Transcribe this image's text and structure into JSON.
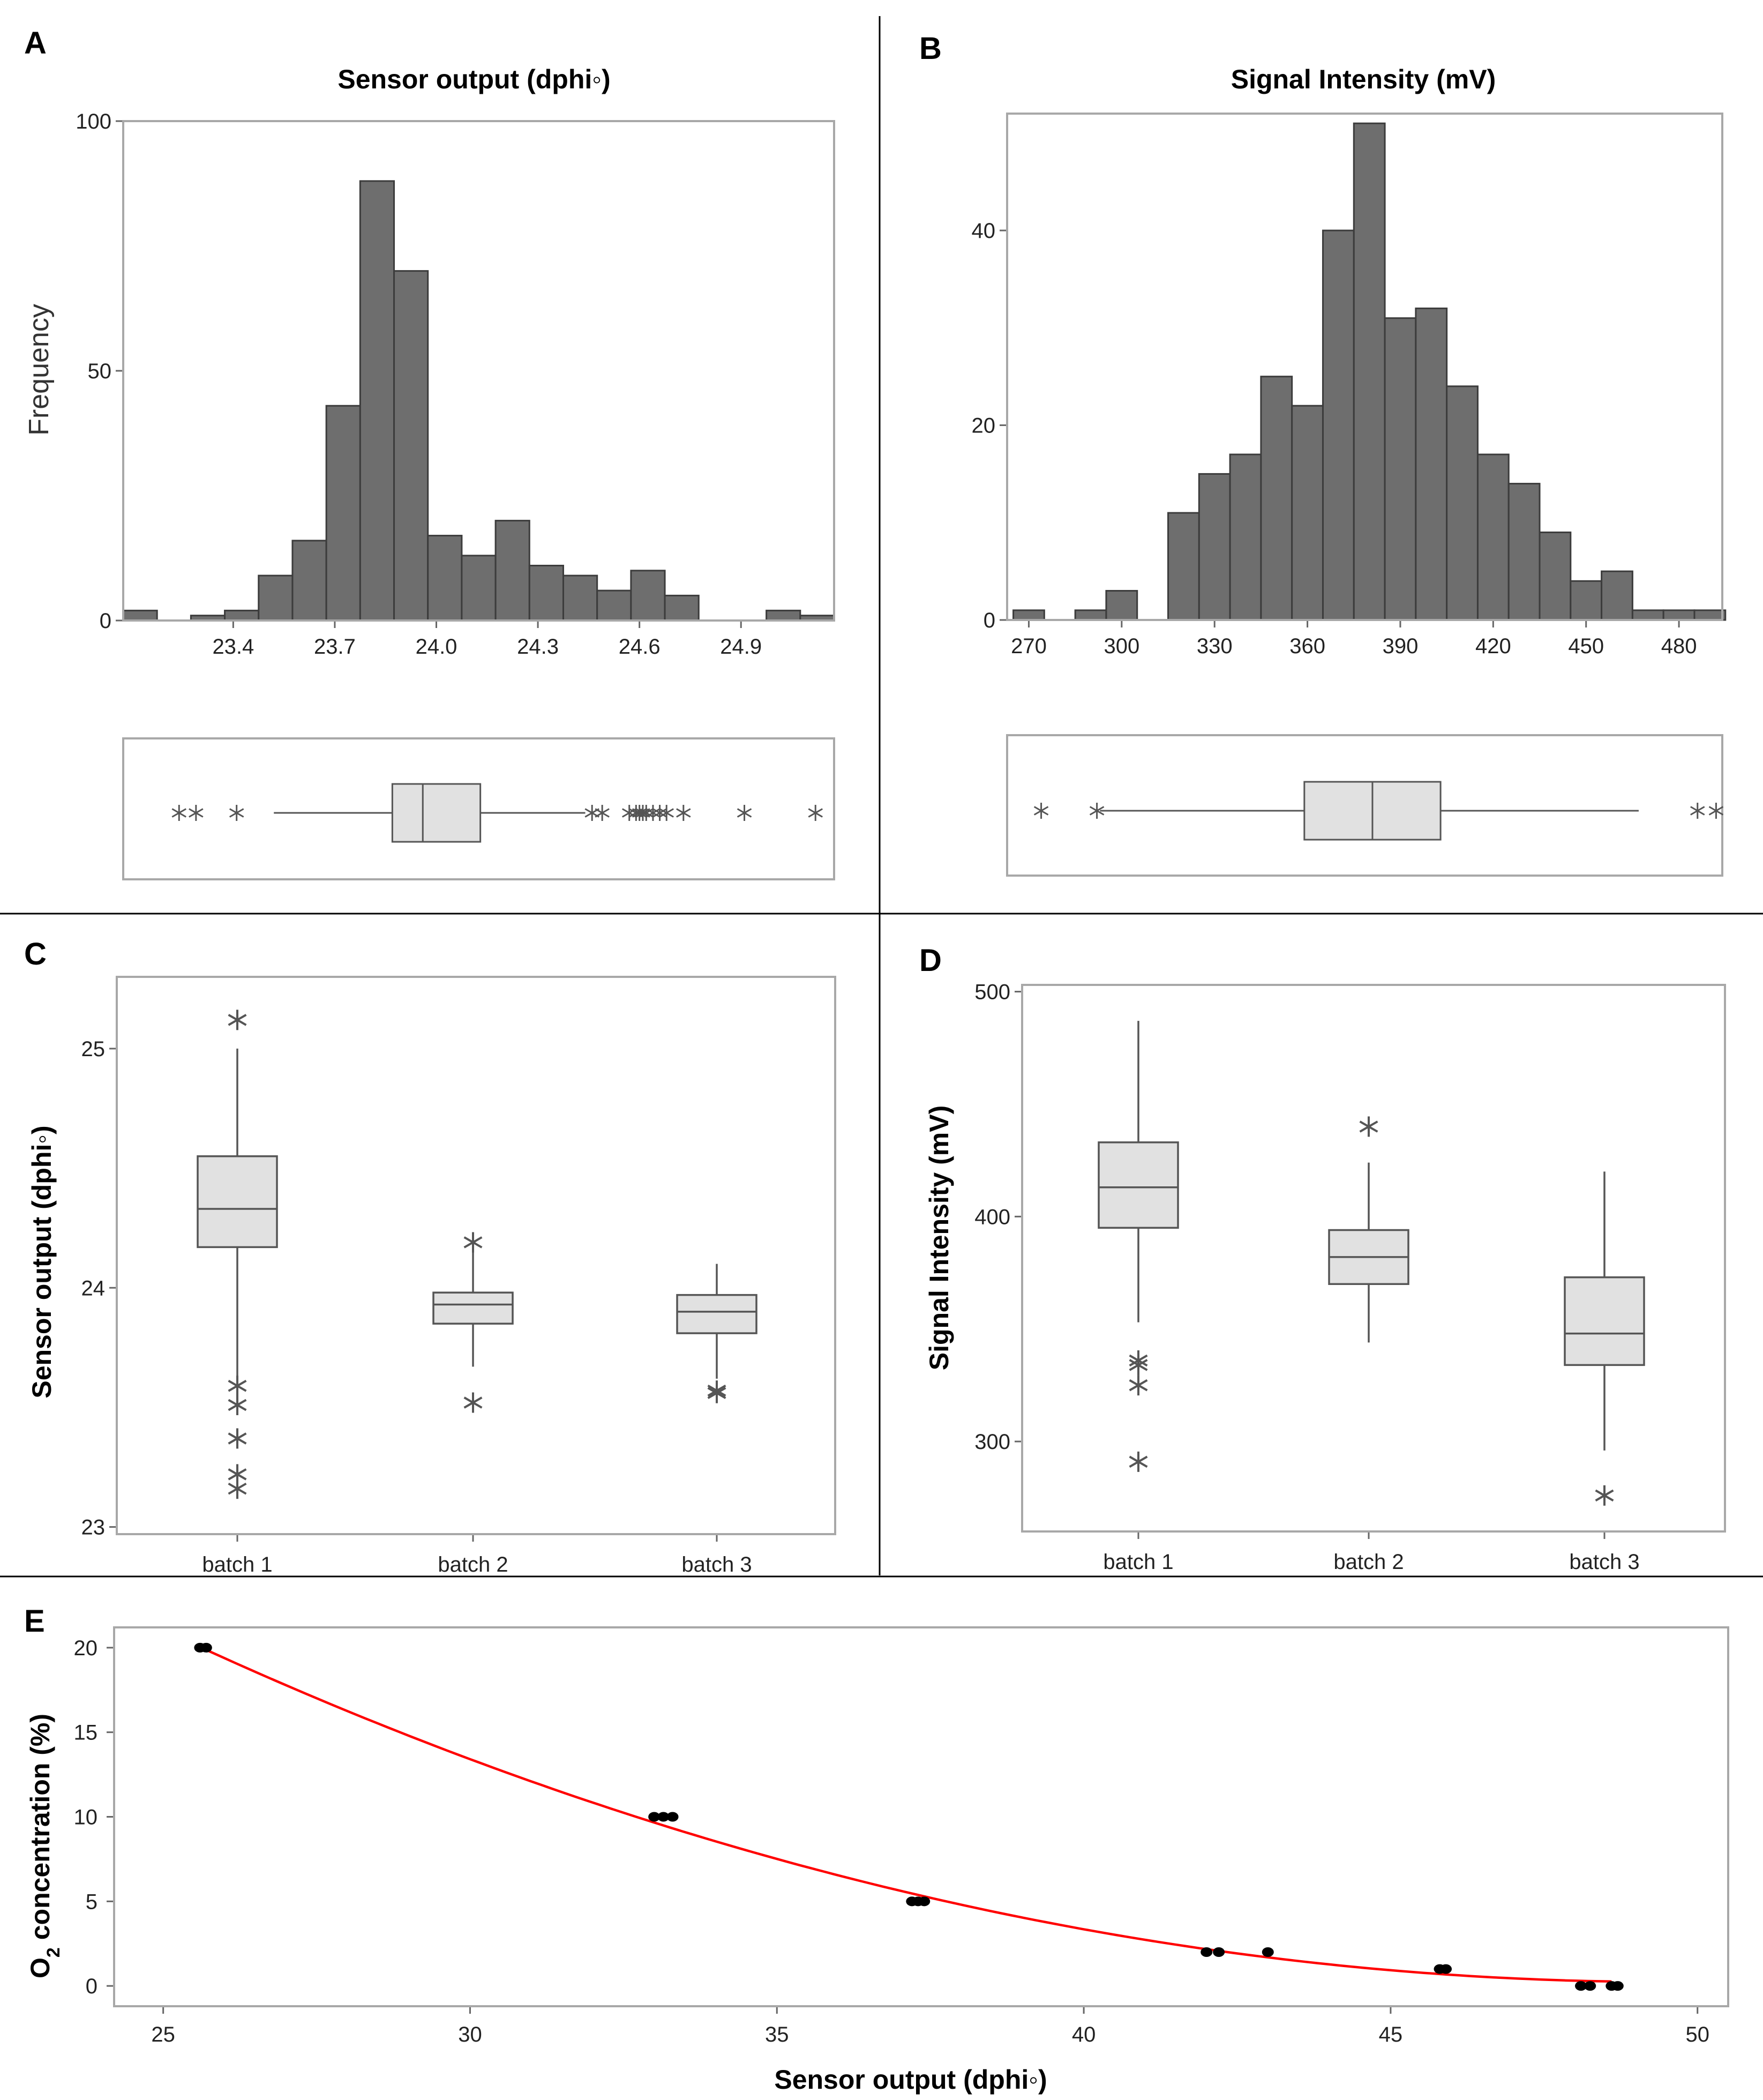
{
  "panels": {
    "A": {
      "letter": "A",
      "title": "Sensor output (dphi◦)",
      "ylabel": "Frequency",
      "x_ticks": [
        "23.4",
        "23.7",
        "24.0",
        "24.3",
        "24.6",
        "24.9"
      ],
      "y_ticks": [
        "0",
        "50",
        "100"
      ]
    },
    "B": {
      "letter": "B",
      "title": "Signal Intensity (mV)",
      "x_ticks": [
        "270",
        "300",
        "330",
        "360",
        "390",
        "420",
        "450",
        "480"
      ],
      "y_ticks": [
        "0",
        "20",
        "40"
      ]
    },
    "C": {
      "letter": "C",
      "ylabel": "Sensor output (dphi◦)",
      "categories": [
        "batch 1",
        "batch 2",
        "batch 3"
      ],
      "y_ticks": [
        "23",
        "24",
        "25"
      ]
    },
    "D": {
      "letter": "D",
      "ylabel": "Signal Intensity (mV)",
      "categories": [
        "batch 1",
        "batch 2",
        "batch 3"
      ],
      "y_ticks": [
        "300",
        "400",
        "500"
      ]
    },
    "E": {
      "letter": "E",
      "ylabel": "O",
      "ylabel_sub": "2",
      "ylabel_rest": " concentration (%)",
      "xlabel": "Sensor output (dphi◦)",
      "x_ticks": [
        "25",
        "30",
        "35",
        "40",
        "45",
        "50"
      ],
      "y_ticks": [
        "0",
        "5",
        "10",
        "15",
        "20"
      ]
    }
  },
  "colors": {
    "bar_fill": "#6e6e6e",
    "box_fill": "#e1e1e1",
    "frame": "#a8a8a8",
    "line": "#555555",
    "fit_line": "#ff0000",
    "point": "#000000",
    "divider": "#000000"
  },
  "chart_data": [
    {
      "panel": "A",
      "type": "bar",
      "subtype": "histogram",
      "title": "Sensor output (dphi◦)",
      "xlabel": "",
      "ylabel": "Frequency",
      "xlim": [
        23.075,
        25.175
      ],
      "ylim": [
        0,
        100
      ],
      "bin_width": 0.1,
      "bin_centers": [
        23.125,
        23.225,
        23.325,
        23.425,
        23.525,
        23.625,
        23.725,
        23.825,
        23.925,
        24.025,
        24.125,
        24.225,
        24.325,
        24.425,
        24.525,
        24.625,
        24.725,
        24.825,
        24.925,
        25.025,
        25.125
      ],
      "values": [
        2,
        0,
        1,
        2,
        9,
        16,
        43,
        88,
        70,
        17,
        13,
        20,
        11,
        9,
        6,
        10,
        5,
        0,
        0,
        2,
        1
      ],
      "boxplot": {
        "xlim": [
          23.075,
          25.175
        ],
        "q1": 23.87,
        "median": 23.96,
        "q3": 24.13,
        "whisker_low": 23.52,
        "whisker_high": 24.44,
        "outliers": [
          23.24,
          23.29,
          23.41,
          24.46,
          24.49,
          24.57,
          24.59,
          24.6,
          24.61,
          24.62,
          24.64,
          24.66,
          24.68,
          24.73,
          24.91,
          25.12
        ]
      }
    },
    {
      "panel": "B",
      "type": "bar",
      "subtype": "histogram",
      "title": "Signal Intensity (mV)",
      "xlabel": "",
      "ylabel": "",
      "xlim": [
        263,
        494
      ],
      "ylim": [
        0,
        52
      ],
      "bin_width": 10,
      "bin_centers": [
        270,
        280,
        290,
        300,
        310,
        320,
        330,
        340,
        350,
        360,
        370,
        380,
        390,
        400,
        410,
        420,
        430,
        440,
        450,
        460,
        470,
        480,
        490
      ],
      "values": [
        1,
        0,
        1,
        3,
        0,
        11,
        15,
        17,
        25,
        22,
        40,
        51,
        31,
        32,
        24,
        17,
        14,
        9,
        4,
        5,
        1,
        1,
        1
      ],
      "boxplot": {
        "xlim": [
          263,
          494
        ],
        "q1": 359,
        "median": 381,
        "q3": 403,
        "whisker_low": 293,
        "whisker_high": 467,
        "outliers": [
          274,
          292,
          486,
          492
        ]
      }
    },
    {
      "panel": "C",
      "type": "boxplot",
      "title": "",
      "xlabel": "",
      "ylabel": "Sensor output (dphi◦)",
      "categories": [
        "batch 1",
        "batch 2",
        "batch 3"
      ],
      "ylim": [
        22.97,
        25.3
      ],
      "boxes": [
        {
          "name": "batch 1",
          "whisker_low": 23.62,
          "q1": 24.17,
          "median": 24.33,
          "q3": 24.55,
          "whisker_high": 25.0,
          "outliers": [
            25.12,
            23.59,
            23.51,
            23.37,
            23.22,
            23.16
          ]
        },
        {
          "name": "batch 2",
          "whisker_low": 23.67,
          "q1": 23.85,
          "median": 23.93,
          "q3": 23.98,
          "whisker_high": 24.17,
          "outliers": [
            24.19,
            23.52
          ]
        },
        {
          "name": "batch 3",
          "whisker_low": 23.62,
          "q1": 23.81,
          "median": 23.9,
          "q3": 23.97,
          "whisker_high": 24.1,
          "outliers": [
            23.57,
            23.56
          ]
        }
      ]
    },
    {
      "panel": "D",
      "type": "boxplot",
      "title": "",
      "xlabel": "",
      "ylabel": "Signal Intensity (mV)",
      "categories": [
        "batch 1",
        "batch 2",
        "batch 3"
      ],
      "ylim": [
        260,
        503
      ],
      "boxes": [
        {
          "name": "batch 1",
          "whisker_low": 353,
          "q1": 395,
          "median": 413,
          "q3": 433,
          "whisker_high": 487,
          "outliers": [
            336,
            334,
            325,
            291
          ]
        },
        {
          "name": "batch 2",
          "whisker_low": 344,
          "q1": 370,
          "median": 382,
          "q3": 394,
          "whisker_high": 424,
          "outliers": [
            440
          ]
        },
        {
          "name": "batch 3",
          "whisker_low": 296,
          "q1": 334,
          "median": 348,
          "q3": 373,
          "whisker_high": 420,
          "outliers": [
            276
          ]
        }
      ]
    },
    {
      "panel": "E",
      "type": "scatter",
      "title": "",
      "xlabel": "Sensor output (dphi◦)",
      "ylabel": "O2 concentration (%)",
      "xlim": [
        24.2,
        50.5
      ],
      "ylim": [
        -1.2,
        21.2
      ],
      "points": [
        {
          "x": 25.6,
          "y": 20
        },
        {
          "x": 25.7,
          "y": 20
        },
        {
          "x": 33.0,
          "y": 10
        },
        {
          "x": 33.15,
          "y": 10
        },
        {
          "x": 33.3,
          "y": 10
        },
        {
          "x": 37.2,
          "y": 5
        },
        {
          "x": 37.3,
          "y": 5
        },
        {
          "x": 37.4,
          "y": 5
        },
        {
          "x": 42.0,
          "y": 2
        },
        {
          "x": 42.2,
          "y": 2
        },
        {
          "x": 43.0,
          "y": 2
        },
        {
          "x": 45.8,
          "y": 1
        },
        {
          "x": 45.9,
          "y": 1
        },
        {
          "x": 48.1,
          "y": 0
        },
        {
          "x": 48.25,
          "y": 0
        },
        {
          "x": 48.6,
          "y": 0
        },
        {
          "x": 48.7,
          "y": 0
        }
      ],
      "fit": {
        "type": "quadratic",
        "x": [
          25.6,
          33.0,
          37.2,
          42.0,
          45.8,
          48.6
        ],
        "y": [
          20.0,
          9.8,
          5.4,
          2.0,
          0.9,
          0.2
        ]
      }
    }
  ]
}
